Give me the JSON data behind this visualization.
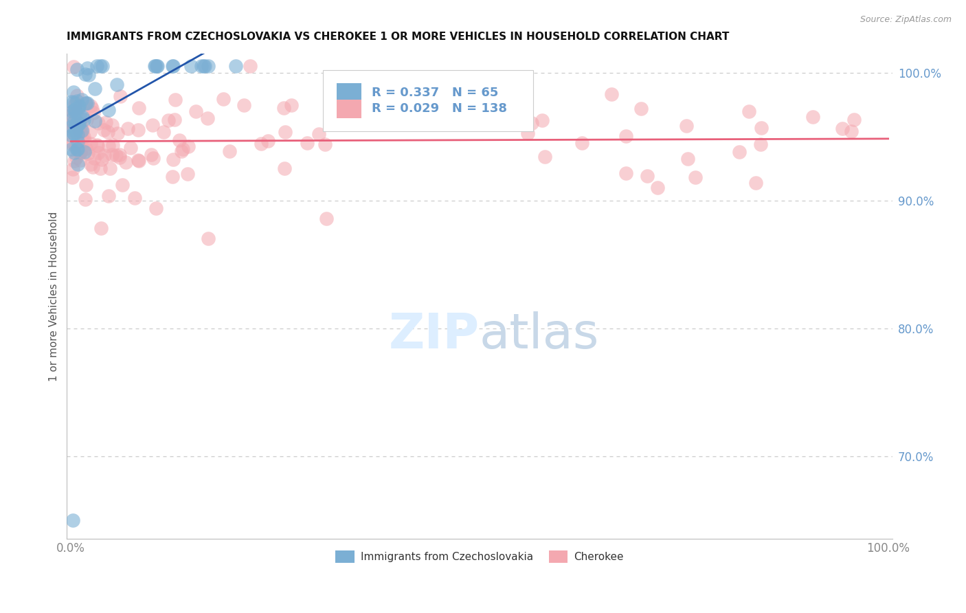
{
  "title": "IMMIGRANTS FROM CZECHOSLOVAKIA VS CHEROKEE 1 OR MORE VEHICLES IN HOUSEHOLD CORRELATION CHART",
  "source_text": "Source: ZipAtlas.com",
  "ylabel": "1 or more Vehicles in Household",
  "xlim": [
    -0.005,
    1.005
  ],
  "ylim": [
    0.635,
    1.015
  ],
  "yticks": [
    0.7,
    0.8,
    0.9,
    1.0
  ],
  "ytick_labels": [
    "70.0%",
    "80.0%",
    "90.0%",
    "100.0%"
  ],
  "xtick_labels": [
    "0.0%",
    "100.0%"
  ],
  "legend_R_blue": "0.337",
  "legend_N_blue": "65",
  "legend_R_pink": "0.029",
  "legend_N_pink": "138",
  "blue_color": "#7BAFD4",
  "pink_color": "#F4A8B0",
  "trend_blue": "#2255AA",
  "trend_pink": "#E8607A",
  "grid_color": "#CCCCCC",
  "axis_color": "#BBBBBB",
  "tick_color": "#6699CC",
  "title_color": "#111111",
  "source_color": "#999999",
  "ylabel_color": "#555555",
  "watermark_color": "#DDEEFF",
  "legend_border": "#CCCCCC"
}
